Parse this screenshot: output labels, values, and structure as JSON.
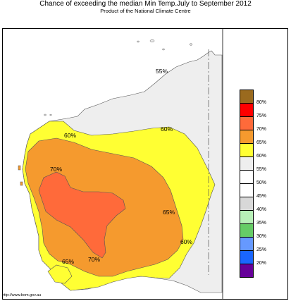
{
  "title": "Chance of exceeding the median Min Temp.July to September 2012",
  "subtitle": "Product of the National Climate Centre",
  "source_url": "http://www.bom.gov.au",
  "colors": {
    "c80": "#9a6a1e",
    "c75": "#ff0000",
    "c70": "#ff6a3a",
    "c65": "#f59a2e",
    "c60": "#ffff33",
    "c55": "#eeeeee",
    "c50": "#ffffff",
    "c45": "#ffffff",
    "c40": "#d8d8d8",
    "c35": "#b8f0b8",
    "c30": "#66cc66",
    "c25": "#6699ff",
    "c20": "#1a66ff",
    "c15": "#660099"
  },
  "legend": [
    {
      "label": "80%",
      "color": "#9a6a1e"
    },
    {
      "label": "75%",
      "color": "#ff0000"
    },
    {
      "label": "70%",
      "color": "#ff6a3a"
    },
    {
      "label": "65%",
      "color": "#f59a2e"
    },
    {
      "label": "60%",
      "color": "#ffff33"
    },
    {
      "label": "55%",
      "color": "#eeeeee"
    },
    {
      "label": "50%",
      "color": "#ffffff"
    },
    {
      "label": "45%",
      "color": "#ffffff"
    },
    {
      "label": "40%",
      "color": "#d8d8d8"
    },
    {
      "label": "35%",
      "color": "#b8f0b8"
    },
    {
      "label": "30%",
      "color": "#66cc66"
    },
    {
      "label": "25%",
      "color": "#6699ff"
    },
    {
      "label": "20%",
      "color": "#1a66ff"
    },
    {
      "label": "",
      "color": "#660099"
    }
  ],
  "contour_labels": {
    "l55": "55%",
    "l60_west": "60%",
    "l60_east": "60%",
    "l70_north": "70%",
    "l65_east": "65%",
    "l60_south": "60%",
    "l65_south": "65%",
    "l70_south": "70%"
  }
}
